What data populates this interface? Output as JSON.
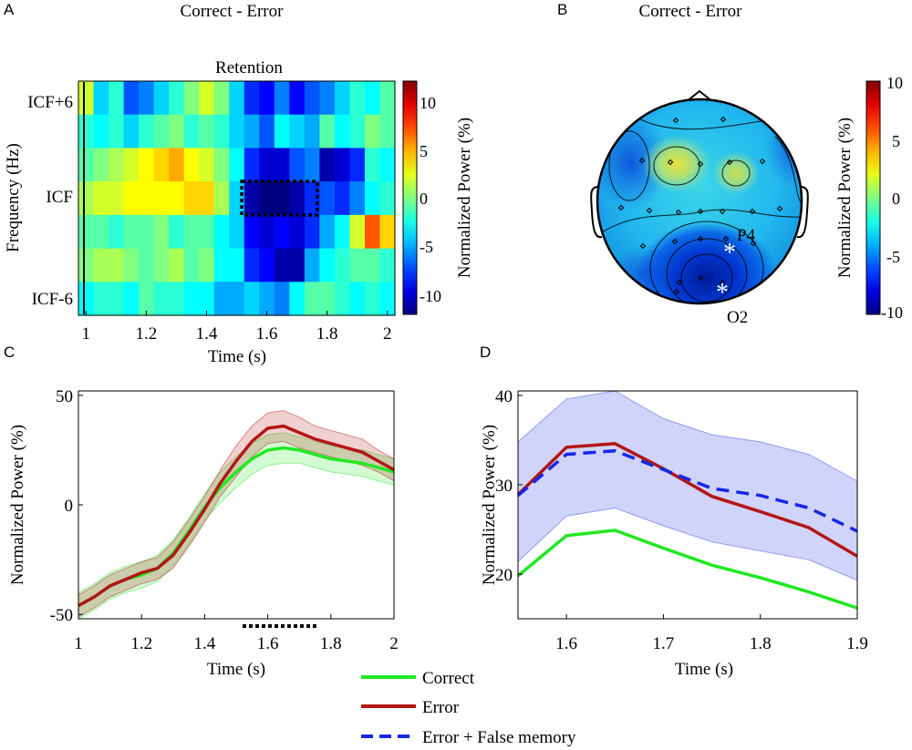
{
  "chart_data": [
    {
      "panel": "A",
      "type": "heatmap",
      "title": "Correct - Error",
      "subtitle": "Retention",
      "xlabel": "Time (s)",
      "ylabel": "Frequency (Hz)",
      "xlim": [
        0.975,
        2.025
      ],
      "x_ticks": [
        "1",
        "1.2",
        "1.4",
        "1.6",
        "1.8",
        "2"
      ],
      "y_tick_labels": [
        "ICF+6",
        "ICF",
        "ICF-6"
      ],
      "colorbar": {
        "label": "Normalized Power (%)",
        "range": [
          -12,
          12
        ],
        "ticks": [
          "10",
          "5",
          "0",
          "-5",
          "-10"
        ]
      },
      "x": [
        1.0,
        1.05,
        1.1,
        1.15,
        1.2,
        1.25,
        1.3,
        1.35,
        1.4,
        1.45,
        1.5,
        1.55,
        1.6,
        1.65,
        1.7,
        1.75,
        1.8,
        1.85,
        1.9,
        1.95,
        2.0
      ],
      "rows_top_to_bottom": [
        [
          2,
          -4,
          -2,
          -7,
          -6,
          -4,
          -2,
          0,
          2,
          0,
          -4,
          -8,
          -9,
          -6,
          -9,
          -7,
          -6,
          -4,
          -2,
          -3,
          -1
        ],
        [
          -2,
          -3,
          -2,
          -4,
          -2,
          -1,
          0,
          -2,
          -1,
          -2,
          -4,
          -5,
          -7,
          -3,
          -4,
          -5,
          -1,
          -3,
          -2,
          0,
          -1
        ],
        [
          -1,
          0,
          1,
          2,
          3,
          4,
          5,
          3,
          2,
          0,
          -3,
          -8,
          -10,
          -10,
          -7,
          -6,
          -11,
          -10,
          -8,
          -2,
          -3
        ],
        [
          1,
          2,
          2,
          3,
          3,
          3,
          3,
          4,
          4,
          1,
          -4,
          -11,
          -12,
          -12,
          -11,
          -8,
          -7,
          -8,
          -6,
          -3,
          -2
        ],
        [
          -1,
          -1,
          -2,
          -1,
          -1,
          0,
          -2,
          -1,
          -1,
          -3,
          -4,
          -9,
          -10,
          -9,
          -10,
          -8,
          -5,
          -3,
          2,
          7,
          4
        ],
        [
          0,
          1,
          1,
          0,
          -1,
          0,
          1,
          -1,
          0,
          -3,
          -3,
          -8,
          -9,
          -11,
          -11,
          -5,
          -3,
          -2,
          -1,
          -1,
          -2
        ],
        [
          -3,
          -2,
          -2,
          -3,
          -1,
          -2,
          -2,
          -3,
          -3,
          -5,
          -5,
          -4,
          -5,
          -6,
          -3,
          -1,
          -1,
          -2,
          -3,
          -2,
          -3
        ]
      ],
      "highlight_box": {
        "x_range": [
          1.53,
          1.77
        ],
        "rows": [
          2,
          3
        ]
      }
    },
    {
      "panel": "B",
      "type": "topomap",
      "title": "Correct - Error",
      "colorbar": {
        "label": "Normalized Power (%)",
        "range": [
          -10,
          10
        ],
        "ticks": [
          "10",
          "5",
          "0",
          "-5",
          "-10"
        ]
      },
      "electrode_labels": [
        "P4",
        "O2"
      ]
    },
    {
      "panel": "C",
      "type": "line",
      "xlabel": "Time (s)",
      "ylabel": "Normalized Power (%)",
      "xlim": [
        1,
        2
      ],
      "ylim": [
        -52,
        52
      ],
      "x_ticks": [
        "1",
        "1.2",
        "1.4",
        "1.6",
        "1.8",
        "2"
      ],
      "y_ticks": [
        "50",
        "0",
        "-50"
      ],
      "x": [
        1.0,
        1.05,
        1.1,
        1.15,
        1.2,
        1.25,
        1.3,
        1.35,
        1.4,
        1.45,
        1.5,
        1.55,
        1.6,
        1.65,
        1.7,
        1.75,
        1.8,
        1.85,
        1.9,
        1.95,
        2.0
      ],
      "series": [
        {
          "name": "Correct",
          "color": "#21e821",
          "values": [
            -46,
            -42,
            -37,
            -34,
            -32,
            -29,
            -22,
            -12,
            -1,
            8,
            15,
            21,
            25,
            26,
            25,
            23,
            21,
            20,
            19,
            17,
            15
          ],
          "band": [
            6,
            6,
            6,
            6,
            6,
            6,
            6,
            6,
            6,
            7,
            7,
            7,
            7,
            7,
            6,
            6,
            6,
            6,
            6,
            6,
            6
          ]
        },
        {
          "name": "Error",
          "color": "#b31616",
          "values": [
            -46,
            -42,
            -37,
            -34,
            -31,
            -29,
            -23,
            -13,
            -2,
            10,
            20,
            29,
            35,
            36,
            33,
            30,
            28,
            26,
            24,
            20,
            16
          ],
          "band": [
            5,
            5,
            5,
            5,
            5,
            5,
            6,
            6,
            6,
            6,
            7,
            7,
            7,
            7,
            7,
            6,
            6,
            6,
            6,
            5,
            5
          ]
        }
      ],
      "significance_marker": {
        "x_range": [
          1.53,
          1.77
        ]
      }
    },
    {
      "panel": "D",
      "type": "line",
      "xlabel": "Time (s)",
      "ylabel": "Normalized Power (%)",
      "xlim": [
        1.55,
        1.9
      ],
      "ylim": [
        15,
        40.5
      ],
      "x_ticks": [
        "1.6",
        "1.7",
        "1.8",
        "1.9"
      ],
      "y_ticks": [
        "40",
        "30",
        "20"
      ],
      "x": [
        1.55,
        1.6,
        1.65,
        1.7,
        1.75,
        1.8,
        1.85,
        1.9
      ],
      "series": [
        {
          "name": "Correct",
          "color": "#21e821",
          "style": "solid",
          "values": [
            19.8,
            24.3,
            24.9,
            22.9,
            21.0,
            19.6,
            18.0,
            16.2
          ]
        },
        {
          "name": "Error",
          "color": "#b31616",
          "style": "solid",
          "values": [
            28.9,
            34.2,
            34.6,
            31.8,
            28.7,
            27.0,
            25.2,
            22.0
          ]
        },
        {
          "name": "Error + False memory",
          "color": "#1428e6",
          "style": "dashed",
          "values": [
            28.8,
            33.4,
            33.8,
            31.7,
            29.6,
            28.8,
            27.4,
            24.8
          ],
          "band_upper": [
            34.8,
            39.6,
            40.5,
            37.4,
            35.6,
            34.8,
            33.4,
            30.4
          ],
          "band_lower": [
            21.4,
            26.5,
            27.4,
            25.4,
            23.6,
            22.6,
            21.6,
            19.3
          ]
        }
      ]
    }
  ],
  "panel_labels": [
    "A",
    "B",
    "C",
    "D"
  ],
  "legend": [
    {
      "label": "Correct",
      "color": "#21e821",
      "style": "solid"
    },
    {
      "label": "Error",
      "color": "#b31616",
      "style": "solid"
    },
    {
      "label": "Error + False memory",
      "color": "#1428e6",
      "style": "dashed"
    }
  ],
  "colors": {
    "axis": "#000000",
    "box": "#000000"
  }
}
